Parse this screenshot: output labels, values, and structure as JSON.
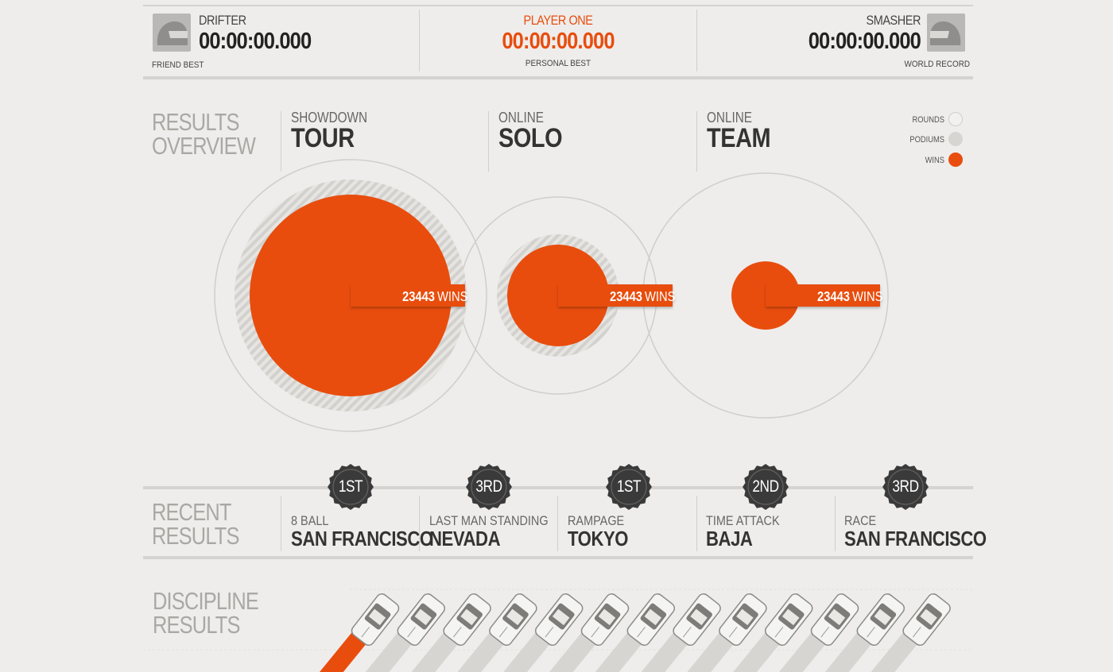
{
  "header": {
    "left": {
      "name": "DRIFTER",
      "time": "00:00:00.000",
      "label": "FRIEND BEST"
    },
    "center": {
      "name": "PLAYER ONE",
      "time": "00:00:00.000",
      "label": "PERSONAL BEST"
    },
    "right": {
      "name": "SMASHER",
      "time": "00:00:00.000",
      "label": "WORLD RECORD"
    }
  },
  "results_overview": {
    "title_line1": "RESULTS",
    "title_line2": "OVERVIEW",
    "categories": [
      {
        "small": "SHOWDOWN",
        "big": "TOUR"
      },
      {
        "small": "ONLINE",
        "big": "SOLO"
      },
      {
        "small": "ONLINE",
        "big": "TEAM"
      }
    ],
    "legend": [
      {
        "label": "ROUNDS"
      },
      {
        "label": "PODIUMS"
      },
      {
        "label": "WINS"
      }
    ],
    "chips": [
      {
        "value": "23443",
        "unit": "WINS"
      },
      {
        "value": "23443",
        "unit": "WINS"
      },
      {
        "value": "23443",
        "unit": "WINS"
      }
    ]
  },
  "recent_results": {
    "title_line1": "RECENT",
    "title_line2": "RESULTS",
    "items": [
      {
        "place": "1ST",
        "mode": "8 BALL",
        "location": "SAN FRANCISCO"
      },
      {
        "place": "3RD",
        "mode": "LAST MAN STANDING",
        "location": "NEVADA"
      },
      {
        "place": "1ST",
        "mode": "RAMPAGE",
        "location": "TOKYO"
      },
      {
        "place": "2ND",
        "mode": "TIME ATTACK",
        "location": "BAJA"
      },
      {
        "place": "3RD",
        "mode": "RACE",
        "location": "SAN FRANCISCO"
      }
    ]
  },
  "discipline_results": {
    "title_line1": "DISCIPLINE",
    "title_line2": "RESULTS",
    "car_count": 13
  },
  "colors": {
    "accent": "#e84d0e",
    "background": "#eeedeb",
    "badge": "#3a3a3a",
    "podium": "#d6d5d2",
    "rounds_ring": "#cfcecb"
  }
}
